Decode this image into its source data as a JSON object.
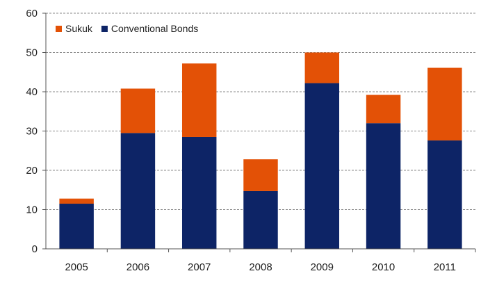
{
  "chart_data": {
    "type": "bar",
    "stacked": true,
    "categories": [
      "2005",
      "2006",
      "2007",
      "2008",
      "2009",
      "2010",
      "2011"
    ],
    "series": [
      {
        "name": "Conventional Bonds",
        "color": "#0d2466",
        "values": [
          11.5,
          29.5,
          28.5,
          14.7,
          42.2,
          32.0,
          27.6
        ]
      },
      {
        "name": "Sukuk",
        "color": "#e35106",
        "values": [
          1.3,
          11.3,
          18.7,
          8.1,
          7.8,
          7.2,
          18.5
        ]
      }
    ],
    "legend_order": [
      "Sukuk",
      "Conventional Bonds"
    ],
    "legend_position": "top-left",
    "ylim": [
      0,
      60
    ],
    "yticks": [
      0,
      10,
      20,
      30,
      40,
      50,
      60
    ],
    "grid": true,
    "title": "",
    "xlabel": "",
    "ylabel": ""
  }
}
